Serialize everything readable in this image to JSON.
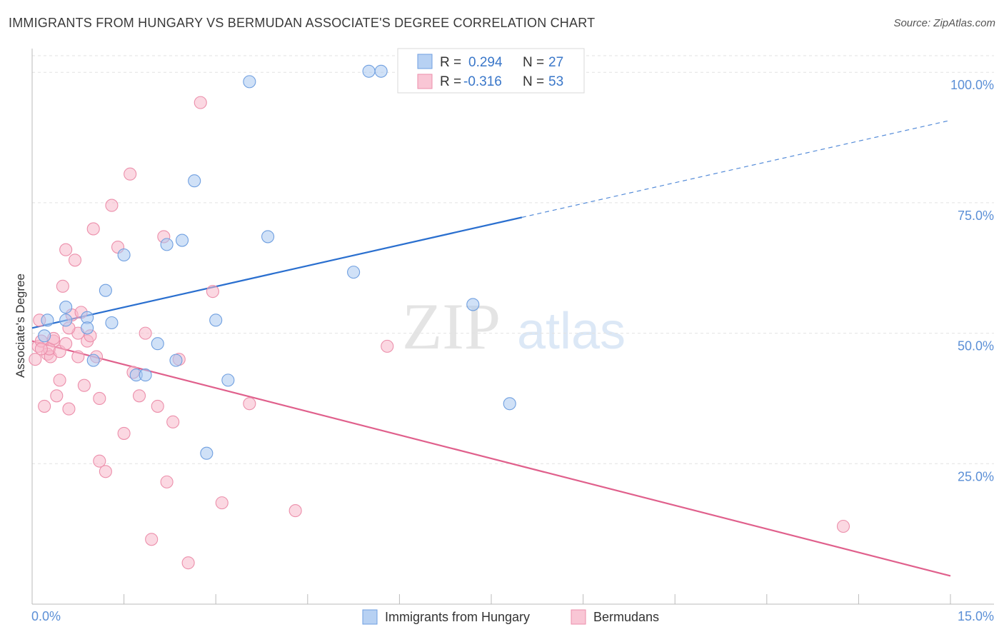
{
  "title": "IMMIGRANTS FROM HUNGARY VS BERMUDAN ASSOCIATE'S DEGREE CORRELATION CHART",
  "source": "Source: ZipAtlas.com",
  "watermark": {
    "zip": "ZIP",
    "atlas": "atlas"
  },
  "chart_data": {
    "type": "scatter",
    "title": "IMMIGRANTS FROM HUNGARY VS BERMUDAN ASSOCIATE'S DEGREE CORRELATION CHART",
    "xlabel": "",
    "ylabel": "Associate's Degree",
    "xlim": [
      0,
      15
    ],
    "ylim": [
      0,
      104
    ],
    "x_tick_labels": [
      "0.0%",
      "15.0%"
    ],
    "y_ticks": [
      25,
      50,
      75,
      100
    ],
    "y_tick_labels": [
      "25.0%",
      "50.0%",
      "75.0%",
      "100.0%"
    ],
    "grid": true,
    "legend_placement": "top-center",
    "series": [
      {
        "name": "Immigrants from Hungary",
        "color": "#a9c8f0",
        "edge_color": "#6f9fe0",
        "line_color": "#2a6fcf",
        "R": "0.294",
        "N": "27",
        "trend": {
          "x": [
            0,
            8
          ],
          "y": [
            51.0,
            72.2
          ]
        },
        "trend_dashed": {
          "x": [
            8,
            15
          ],
          "y": [
            72.2,
            90.8
          ]
        },
        "points": [
          [
            0.2,
            49.5
          ],
          [
            0.25,
            52.5
          ],
          [
            0.55,
            55.0
          ],
          [
            0.55,
            52.5
          ],
          [
            0.9,
            53.0
          ],
          [
            0.9,
            51.0
          ],
          [
            1.2,
            58.2
          ],
          [
            1.3,
            52.0
          ],
          [
            1.5,
            65.0
          ],
          [
            1.7,
            42.0
          ],
          [
            1.85,
            42.0
          ],
          [
            2.05,
            48.0
          ],
          [
            2.2,
            67.0
          ],
          [
            2.35,
            44.8
          ],
          [
            2.45,
            67.8
          ],
          [
            2.65,
            79.2
          ],
          [
            2.85,
            27.0
          ],
          [
            3.0,
            52.5
          ],
          [
            3.2,
            41.0
          ],
          [
            3.55,
            98.2
          ],
          [
            3.85,
            68.5
          ],
          [
            5.25,
            61.7
          ],
          [
            5.5,
            100.2
          ],
          [
            5.7,
            100.2
          ],
          [
            7.2,
            55.5
          ],
          [
            7.8,
            36.5
          ],
          [
            1.0,
            44.8
          ]
        ]
      },
      {
        "name": "Bermudans",
        "color": "#f7b8cb",
        "edge_color": "#ec8fab",
        "line_color": "#e0608c",
        "R": "-0.316",
        "N": "53",
        "trend": {
          "x": [
            0,
            15
          ],
          "y": [
            48.5,
            3.5
          ]
        },
        "points": [
          [
            0.05,
            45.0
          ],
          [
            0.1,
            47.5
          ],
          [
            0.15,
            48.5
          ],
          [
            0.2,
            36.0
          ],
          [
            0.25,
            46.0
          ],
          [
            0.3,
            45.5
          ],
          [
            0.35,
            48.5
          ],
          [
            0.4,
            38.0
          ],
          [
            0.45,
            41.0
          ],
          [
            0.5,
            59.0
          ],
          [
            0.55,
            66.0
          ],
          [
            0.6,
            35.5
          ],
          [
            0.65,
            53.5
          ],
          [
            0.7,
            64.0
          ],
          [
            0.75,
            50.0
          ],
          [
            0.8,
            54.0
          ],
          [
            0.85,
            40.0
          ],
          [
            0.9,
            48.5
          ],
          [
            1.0,
            70.0
          ],
          [
            1.05,
            45.5
          ],
          [
            1.1,
            37.5
          ],
          [
            1.2,
            23.5
          ],
          [
            1.3,
            74.5
          ],
          [
            1.4,
            66.5
          ],
          [
            1.5,
            30.8
          ],
          [
            1.6,
            80.5
          ],
          [
            1.65,
            42.5
          ],
          [
            1.75,
            38.0
          ],
          [
            1.85,
            50.0
          ],
          [
            1.95,
            10.5
          ],
          [
            2.05,
            36.0
          ],
          [
            2.15,
            68.5
          ],
          [
            2.2,
            21.5
          ],
          [
            2.3,
            33.0
          ],
          [
            2.4,
            45.0
          ],
          [
            2.55,
            6.0
          ],
          [
            2.75,
            94.2
          ],
          [
            2.95,
            58.0
          ],
          [
            3.1,
            17.5
          ],
          [
            3.55,
            36.5
          ],
          [
            4.3,
            16.0
          ],
          [
            5.8,
            47.5
          ],
          [
            13.25,
            13.0
          ],
          [
            0.12,
            52.5
          ],
          [
            0.28,
            47.0
          ],
          [
            0.45,
            46.5
          ],
          [
            0.6,
            51.0
          ],
          [
            0.75,
            45.5
          ],
          [
            0.95,
            49.5
          ],
          [
            1.1,
            25.5
          ],
          [
            0.35,
            49.0
          ],
          [
            0.55,
            48.0
          ],
          [
            0.15,
            47.0
          ]
        ]
      }
    ]
  },
  "legend": {
    "rows": [
      {
        "r_label": "R =",
        "r_value": "0.294",
        "n_label": "N =",
        "n_value": "27"
      },
      {
        "r_label": "R =",
        "r_value": "-0.316",
        "n_label": "N =",
        "n_value": "53"
      }
    ]
  },
  "bottom_legend": [
    "Immigrants from Hungary",
    "Bermudans"
  ]
}
